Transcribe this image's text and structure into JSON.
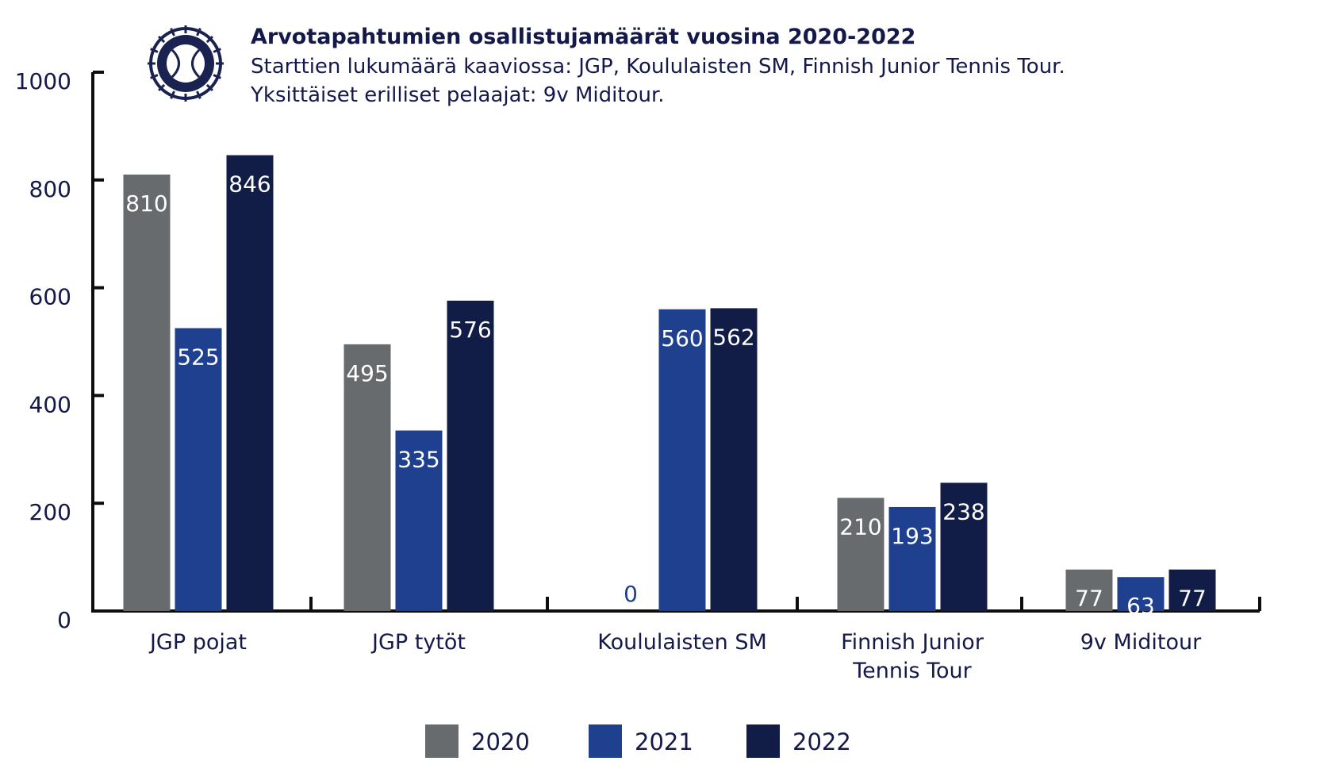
{
  "title": "Arvotapahtumien osallistujamäärät vuosina 2020-2022",
  "subtitle_lines": [
    "Starttien lukumäärä kaaviossa: JGP, Koululaisten SM, Finnish Junior Tennis Tour.",
    "Yksittäiset erilliset pelaajat: 9v Miditour."
  ],
  "logo": {
    "icon": "tennis-federation-emblem-icon",
    "color": "#1a2250"
  },
  "colors": {
    "axis": "#0d0d0d",
    "text": "#14194a",
    "label_light": "#ffffff",
    "label_dark": "#1f3f8f"
  },
  "chart_data": {
    "type": "bar",
    "categories": [
      [
        "JGP pojat"
      ],
      [
        "JGP tytöt"
      ],
      [
        "Koululaisten SM"
      ],
      [
        "Finnish Junior",
        "Tennis Tour"
      ],
      [
        "9v Miditour"
      ]
    ],
    "series": [
      {
        "name": "2020",
        "color": "#686b6d",
        "values": [
          810,
          495,
          0,
          210,
          77
        ]
      },
      {
        "name": "2021",
        "color": "#1f3f8f",
        "values": [
          525,
          335,
          560,
          193,
          63
        ]
      },
      {
        "name": "2022",
        "color": "#121d47",
        "values": [
          846,
          576,
          562,
          238,
          77
        ]
      }
    ],
    "ylim": [
      0,
      1000
    ],
    "yticks": [
      0,
      200,
      400,
      600,
      800,
      1000
    ],
    "grid": false,
    "data_labels": true,
    "legend_position": "bottom-center"
  }
}
